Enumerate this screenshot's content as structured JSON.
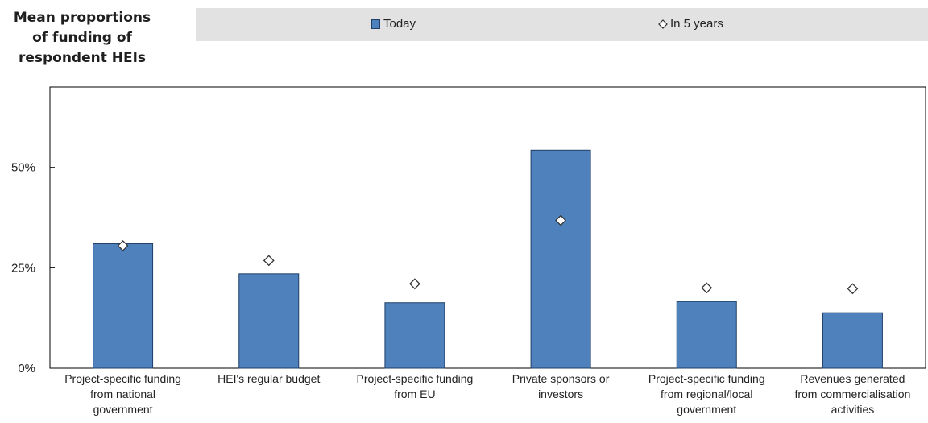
{
  "chart_data": {
    "type": "bar",
    "title_lines": [
      "Mean proportions",
      "of funding of",
      "respondent HEIs"
    ],
    "legend": {
      "bar_label": "Today",
      "marker_label": "In 5 years",
      "placement": "top"
    },
    "categories": [
      [
        "Project-specific funding",
        "from  national",
        "government"
      ],
      [
        "HEI's regular budget"
      ],
      [
        "Project-specific funding",
        "from EU"
      ],
      [
        "Private sponsors or",
        "investors"
      ],
      [
        "Project-specific funding",
        "from regional/local",
        "government"
      ],
      [
        "Revenues generated",
        "from commercialisation",
        "activities"
      ]
    ],
    "series": [
      {
        "name": "Today",
        "kind": "bar",
        "color": "#4f81bd",
        "values": [
          31,
          23.5,
          16.3,
          54.3,
          16.6,
          13.8
        ]
      },
      {
        "name": "In 5 years",
        "kind": "marker",
        "values": [
          30.5,
          26.8,
          21.0,
          36.8,
          20.0,
          19.8
        ]
      }
    ],
    "y_ticks": [
      {
        "value": 0,
        "label": "0%"
      },
      {
        "value": 25,
        "label": "25%"
      },
      {
        "value": 50,
        "label": "50%"
      }
    ],
    "ylim": [
      0,
      70
    ],
    "grid": false
  }
}
